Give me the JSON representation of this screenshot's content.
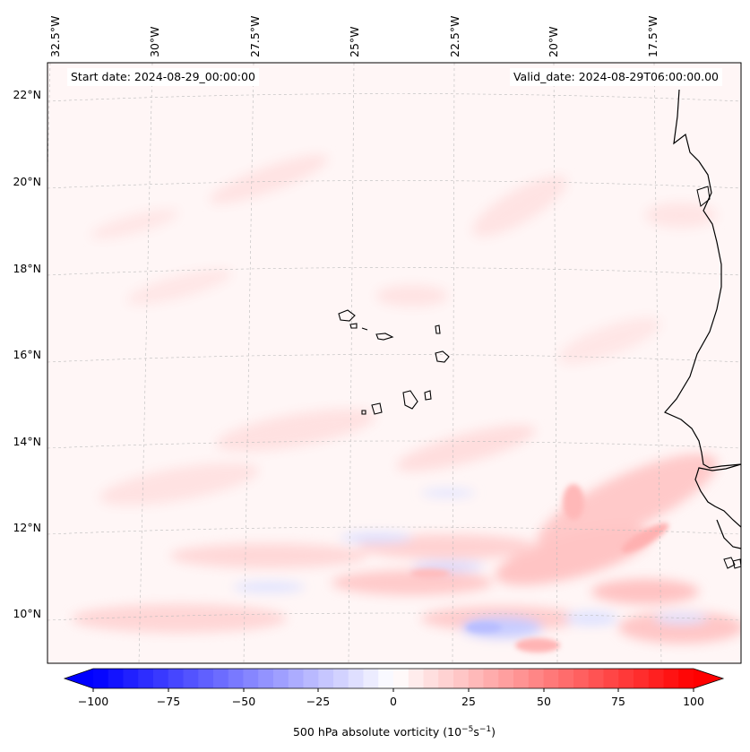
{
  "header": {
    "start_date": "Start date: 2024-08-29_00:00:00",
    "valid_date": "Valid_date: 2024-08-29T06:00:00.00"
  },
  "longitude_labels": [
    "32.5°W",
    "30°W",
    "27.5°W",
    "25°W",
    "22.5°W",
    "20°W",
    "17.5°W"
  ],
  "latitude_labels": [
    "22°N",
    "20°N",
    "18°N",
    "16°N",
    "14°N",
    "12°N",
    "10°N"
  ],
  "colorbar": {
    "ticks": [
      "−100",
      "−75",
      "−50",
      "−25",
      "0",
      "25",
      "50",
      "75",
      "100"
    ],
    "label": "500 hPa absolute vorticity (10",
    "label_exp1": "−5",
    "label_mid": "s",
    "label_exp2": "−1",
    "label_end": ")",
    "colormap": "bwr",
    "min": -100,
    "max": 100,
    "levels": 40,
    "extend": "both"
  },
  "colors": {
    "negative": "#0000ff",
    "neutral": "#ffffff",
    "positive": "#ff0000",
    "coastline": "#000000",
    "gridline": "#bbbbbb"
  }
}
